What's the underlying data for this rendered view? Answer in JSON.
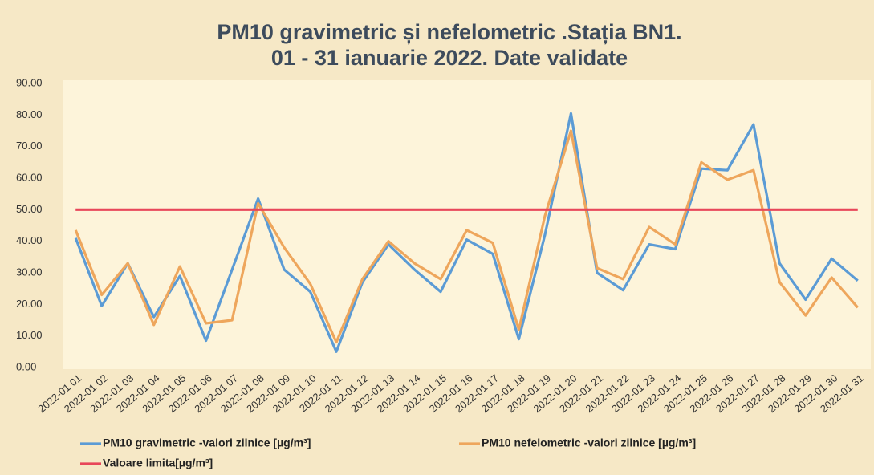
{
  "chart_data": {
    "type": "line",
    "title": "PM10 gravimetric și nefelometric .Stația BN1.",
    "subtitle": "01 - 31 ianuarie 2022. Date validate",
    "categories": [
      "2022-01 01",
      "2022-01 02",
      "2022-01 03",
      "2022-01 04",
      "2022-01 05",
      "2022-01 06",
      "2022-01 07",
      "2022-01 08",
      "2022-01 09",
      "2022-01 10",
      "2022-01 11",
      "2022-01 12",
      "2022-01 13",
      "2022-01 14",
      "2022-01 15",
      "2022-01 16",
      "2022-01 17",
      "2022-01 18",
      "2022-01 19",
      "2022-01 20",
      "2022-01 21",
      "2022-01 22",
      "2022-01 23",
      "2022-01 24",
      "2022-01 25",
      "2022-01 26",
      "2022-01 27",
      "2022-01 28",
      "2022-01 29",
      "2022-01 30",
      "2022-01 31"
    ],
    "series": [
      {
        "name": "PM10 gravimetric -valori zilnice [µg/m³]",
        "color": "#5b9bd5",
        "values": [
          41,
          19.5,
          33,
          16,
          29,
          8.5,
          31,
          53.5,
          31,
          24,
          5,
          27,
          39,
          31,
          24,
          40.5,
          36,
          9,
          42,
          80.5,
          30,
          24.5,
          39,
          37.5,
          63,
          62.5,
          77,
          33,
          21.5,
          34.5,
          27.5
        ]
      },
      {
        "name": "PM10 nefelometric -valori zilnice [µg/m³]",
        "color": "#eea65c",
        "values": [
          43.5,
          23,
          33,
          13.5,
          32,
          14,
          15,
          52,
          38,
          26.5,
          8,
          28,
          40,
          33,
          28,
          43.5,
          39.5,
          12,
          48,
          75,
          31.5,
          28,
          44.5,
          39,
          65,
          59.5,
          62.5,
          27,
          16.5,
          28.5,
          19
        ]
      },
      {
        "name": "Valoare limita[µg/m³]",
        "color": "#e8475a",
        "values": [
          50,
          50,
          50,
          50,
          50,
          50,
          50,
          50,
          50,
          50,
          50,
          50,
          50,
          50,
          50,
          50,
          50,
          50,
          50,
          50,
          50,
          50,
          50,
          50,
          50,
          50,
          50,
          50,
          50,
          50,
          50
        ]
      }
    ],
    "ylim": [
      0,
      90
    ],
    "yticks": [
      {
        "value": 0,
        "label": "0.00"
      },
      {
        "value": 10,
        "label": "10.00"
      },
      {
        "value": 20,
        "label": "20.00"
      },
      {
        "value": 30,
        "label": "30.00"
      },
      {
        "value": 40,
        "label": "40.00"
      },
      {
        "value": 50,
        "label": "50.00"
      },
      {
        "value": 60,
        "label": "60.00"
      },
      {
        "value": 70,
        "label": "70.00"
      },
      {
        "value": 80,
        "label": "80.00"
      },
      {
        "value": 90,
        "label": "90.00"
      }
    ],
    "grid": false
  }
}
